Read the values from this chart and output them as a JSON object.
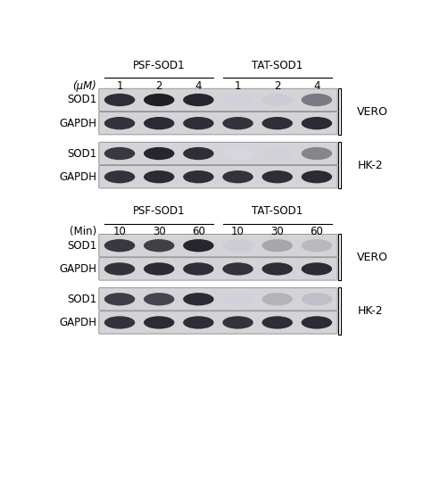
{
  "panel1": {
    "header_psf": "PSF-SOD1",
    "header_tat": "TAT-SOD1",
    "unit_label": "(μM)",
    "unit_italic": true,
    "psf_cols": [
      "1",
      "2",
      "4"
    ],
    "tat_cols": [
      "1",
      "2",
      "4"
    ],
    "rows": [
      {
        "label": "SOD1",
        "cell_line": "VERO",
        "psf_bands": [
          0.82,
          0.88,
          0.85
        ],
        "tat_bands": [
          0.18,
          0.2,
          0.52
        ],
        "gapdh": false
      },
      {
        "label": "GAPDH",
        "cell_line": "VERO",
        "psf_bands": [
          0.8,
          0.83,
          0.82
        ],
        "tat_bands": [
          0.8,
          0.82,
          0.83
        ],
        "gapdh": true
      },
      {
        "label": "SOD1",
        "cell_line": "HK-2",
        "psf_bands": [
          0.78,
          0.85,
          0.82
        ],
        "tat_bands": [
          0.16,
          0.18,
          0.48
        ],
        "gapdh": false
      },
      {
        "label": "GAPDH",
        "cell_line": "HK-2",
        "psf_bands": [
          0.8,
          0.83,
          0.82
        ],
        "tat_bands": [
          0.8,
          0.82,
          0.83
        ],
        "gapdh": true
      }
    ]
  },
  "panel2": {
    "header_psf": "PSF-SOD1",
    "header_tat": "TAT-SOD1",
    "unit_label": "(Min)",
    "unit_italic": false,
    "psf_cols": [
      "10",
      "30",
      "60"
    ],
    "tat_cols": [
      "10",
      "30",
      "60"
    ],
    "rows": [
      {
        "label": "SOD1",
        "cell_line": "VERO",
        "psf_bands": [
          0.78,
          0.75,
          0.85
        ],
        "tat_bands": [
          0.2,
          0.35,
          0.28
        ],
        "gapdh": false
      },
      {
        "label": "GAPDH",
        "cell_line": "VERO",
        "psf_bands": [
          0.8,
          0.83,
          0.82
        ],
        "tat_bands": [
          0.8,
          0.82,
          0.83
        ],
        "gapdh": true
      },
      {
        "label": "SOD1",
        "cell_line": "HK-2",
        "psf_bands": [
          0.76,
          0.73,
          0.83
        ],
        "tat_bands": [
          0.18,
          0.3,
          0.25
        ],
        "gapdh": false
      },
      {
        "label": "GAPDH",
        "cell_line": "HK-2",
        "psf_bands": [
          0.8,
          0.83,
          0.82
        ],
        "tat_bands": [
          0.8,
          0.82,
          0.83
        ],
        "gapdh": true
      }
    ]
  },
  "row_bg_color": "#d4d4d8",
  "band_dark_color": "#1c1c1c",
  "band_faint_color": "#b0b0b8",
  "label_fontsize": 8.5,
  "col_fontsize": 8.5,
  "header_fontsize": 8.5,
  "bracket_label_fontsize": 9
}
